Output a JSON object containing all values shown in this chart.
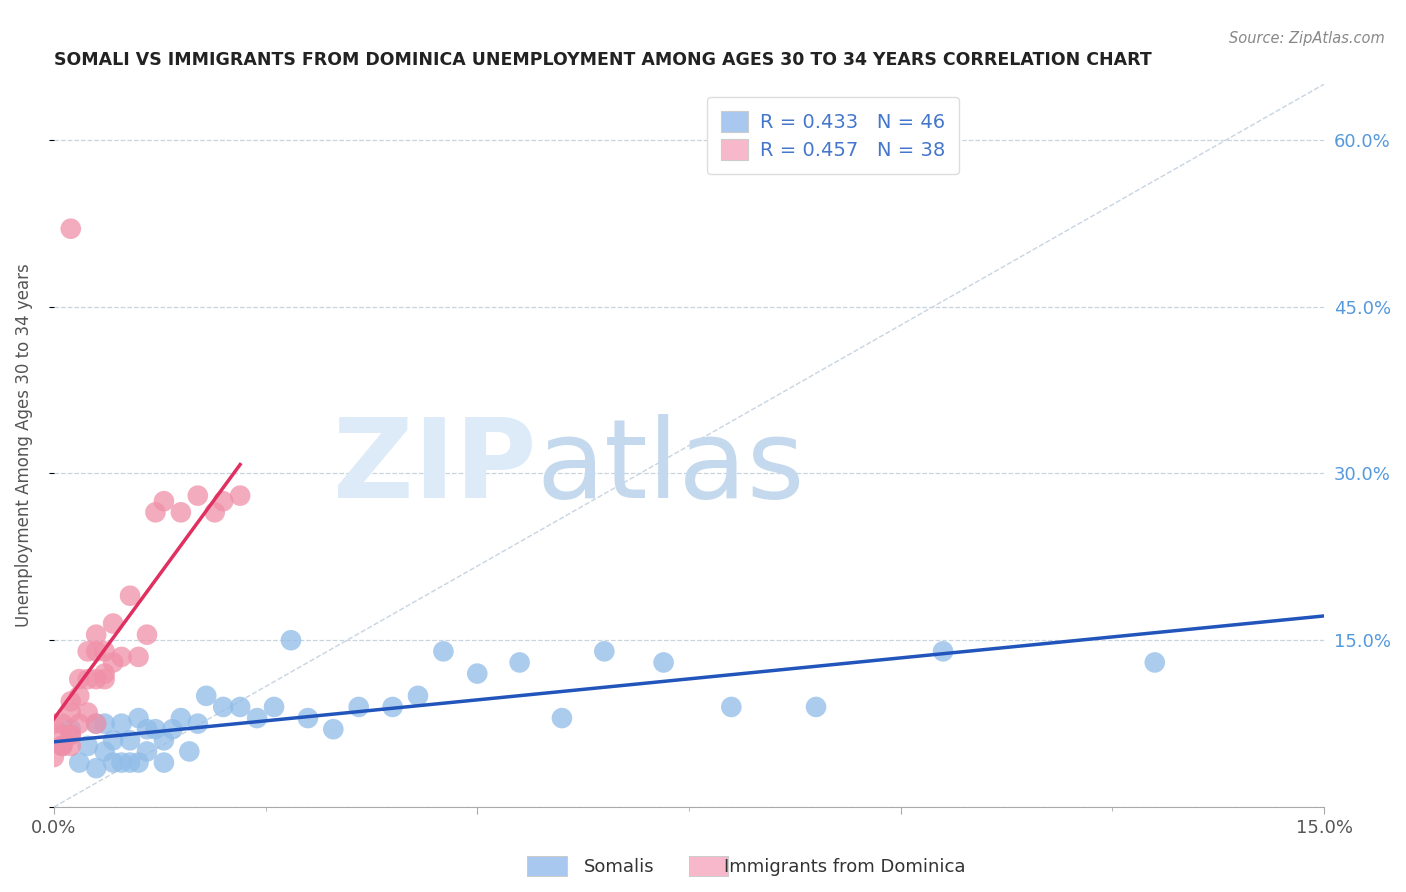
{
  "title": "SOMALI VS IMMIGRANTS FROM DOMINICA UNEMPLOYMENT AMONG AGES 30 TO 34 YEARS CORRELATION CHART",
  "source": "Source: ZipAtlas.com",
  "ylabel": "Unemployment Among Ages 30 to 34 years",
  "xlim": [
    0.0,
    0.15
  ],
  "ylim": [
    0.0,
    0.65
  ],
  "legend_label1": "R = 0.433   N = 46",
  "legend_label2": "R = 0.457   N = 38",
  "legend_color1": "#a8c8f0",
  "legend_color2": "#f8b8cc",
  "scatter_color1": "#90bce8",
  "scatter_color2": "#f090a8",
  "line_color1": "#2255bb",
  "line_color2": "#e03060",
  "diagonal_color": "#c8d4e0",
  "background_color": "#ffffff",
  "somali_x": [
    0.001,
    0.002,
    0.003,
    0.004,
    0.005,
    0.005,
    0.006,
    0.006,
    0.007,
    0.007,
    0.008,
    0.008,
    0.009,
    0.009,
    0.01,
    0.01,
    0.011,
    0.011,
    0.012,
    0.013,
    0.013,
    0.014,
    0.015,
    0.016,
    0.017,
    0.018,
    0.02,
    0.022,
    0.024,
    0.026,
    0.028,
    0.03,
    0.033,
    0.036,
    0.04,
    0.043,
    0.046,
    0.05,
    0.055,
    0.06,
    0.065,
    0.072,
    0.08,
    0.09,
    0.105,
    0.13
  ],
  "somali_y": [
    0.055,
    0.07,
    0.04,
    0.055,
    0.075,
    0.035,
    0.05,
    0.075,
    0.06,
    0.04,
    0.075,
    0.04,
    0.06,
    0.04,
    0.08,
    0.04,
    0.05,
    0.07,
    0.07,
    0.04,
    0.06,
    0.07,
    0.08,
    0.05,
    0.075,
    0.1,
    0.09,
    0.09,
    0.08,
    0.09,
    0.15,
    0.08,
    0.07,
    0.09,
    0.09,
    0.1,
    0.14,
    0.12,
    0.13,
    0.08,
    0.14,
    0.13,
    0.09,
    0.09,
    0.14,
    0.13
  ],
  "dominica_x": [
    0.0,
    0.0,
    0.001,
    0.001,
    0.001,
    0.001,
    0.002,
    0.002,
    0.002,
    0.002,
    0.002,
    0.003,
    0.003,
    0.003,
    0.004,
    0.004,
    0.004,
    0.005,
    0.005,
    0.005,
    0.005,
    0.006,
    0.006,
    0.006,
    0.007,
    0.007,
    0.008,
    0.009,
    0.01,
    0.011,
    0.012,
    0.013,
    0.015,
    0.017,
    0.019,
    0.02,
    0.022,
    0.002
  ],
  "dominica_y": [
    0.045,
    0.075,
    0.055,
    0.075,
    0.065,
    0.055,
    0.065,
    0.085,
    0.065,
    0.055,
    0.095,
    0.075,
    0.1,
    0.115,
    0.085,
    0.14,
    0.115,
    0.14,
    0.155,
    0.115,
    0.075,
    0.12,
    0.14,
    0.115,
    0.13,
    0.165,
    0.135,
    0.19,
    0.135,
    0.155,
    0.265,
    0.275,
    0.265,
    0.28,
    0.265,
    0.275,
    0.28,
    0.52
  ]
}
